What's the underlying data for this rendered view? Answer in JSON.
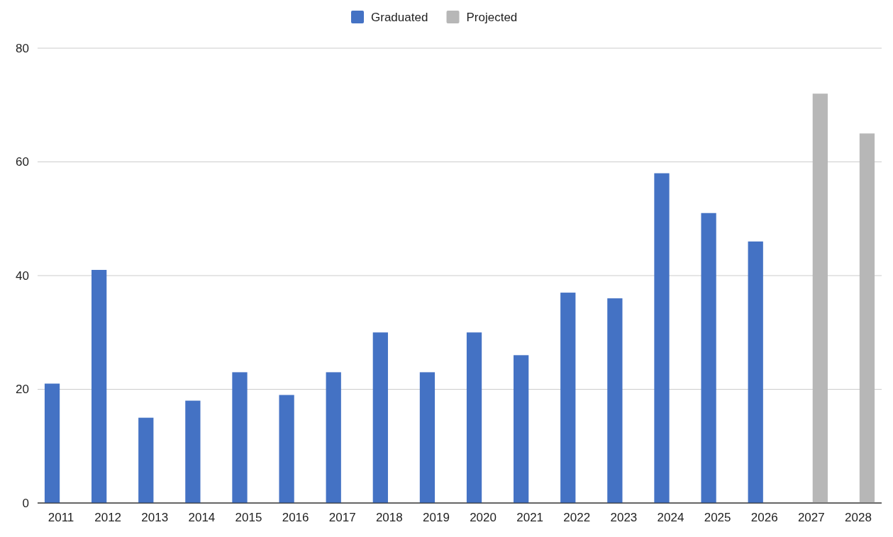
{
  "chart_data": {
    "type": "bar",
    "categories": [
      "2011",
      "2012",
      "2013",
      "2014",
      "2015",
      "2016",
      "2017",
      "2018",
      "2019",
      "2020",
      "2021",
      "2022",
      "2023",
      "2024",
      "2025",
      "2026",
      "2027",
      "2028"
    ],
    "series": [
      {
        "name": "Graduated",
        "color": "#4472c4",
        "values": [
          21,
          41,
          15,
          18,
          23,
          19,
          23,
          30,
          23,
          30,
          26,
          37,
          36,
          58,
          51,
          46,
          null,
          null
        ]
      },
      {
        "name": "Projected",
        "color": "#b7b7b7",
        "values": [
          null,
          null,
          null,
          null,
          null,
          null,
          null,
          null,
          null,
          null,
          null,
          null,
          null,
          null,
          null,
          null,
          72,
          65
        ]
      }
    ],
    "ylim": [
      0,
      80
    ],
    "yticks": [
      0,
      20,
      40,
      60,
      80
    ],
    "grid": "y",
    "legend": "top"
  }
}
